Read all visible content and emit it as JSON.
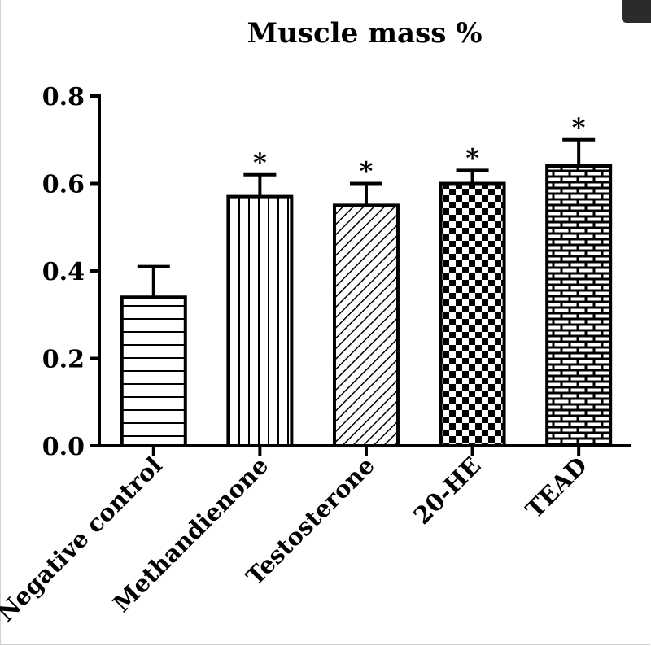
{
  "chart_data": {
    "type": "bar",
    "title": "Muscle mass %",
    "xlabel": "",
    "ylabel": "",
    "categories": [
      "Negative control",
      "Methandienone",
      "Testosterone",
      "20-HE",
      "TEAD"
    ],
    "values": [
      0.34,
      0.57,
      0.55,
      0.6,
      0.64
    ],
    "errors": [
      0.07,
      0.05,
      0.05,
      0.03,
      0.06
    ],
    "significance": [
      "",
      "*",
      "*",
      "*",
      "*"
    ],
    "ylim": [
      0,
      0.8
    ],
    "yticks": [
      "0.0",
      "0.2",
      "0.4",
      "0.6",
      "0.8"
    ],
    "patterns": [
      "horizontal-lines",
      "vertical-lines",
      "diagonal-hatch",
      "checkerboard",
      "brick"
    ],
    "grid": false,
    "legend": "none",
    "bar_fill": "#ffffff",
    "bar_stroke": "#000000"
  },
  "window": {
    "corner_control_icon": "expand-icon"
  }
}
